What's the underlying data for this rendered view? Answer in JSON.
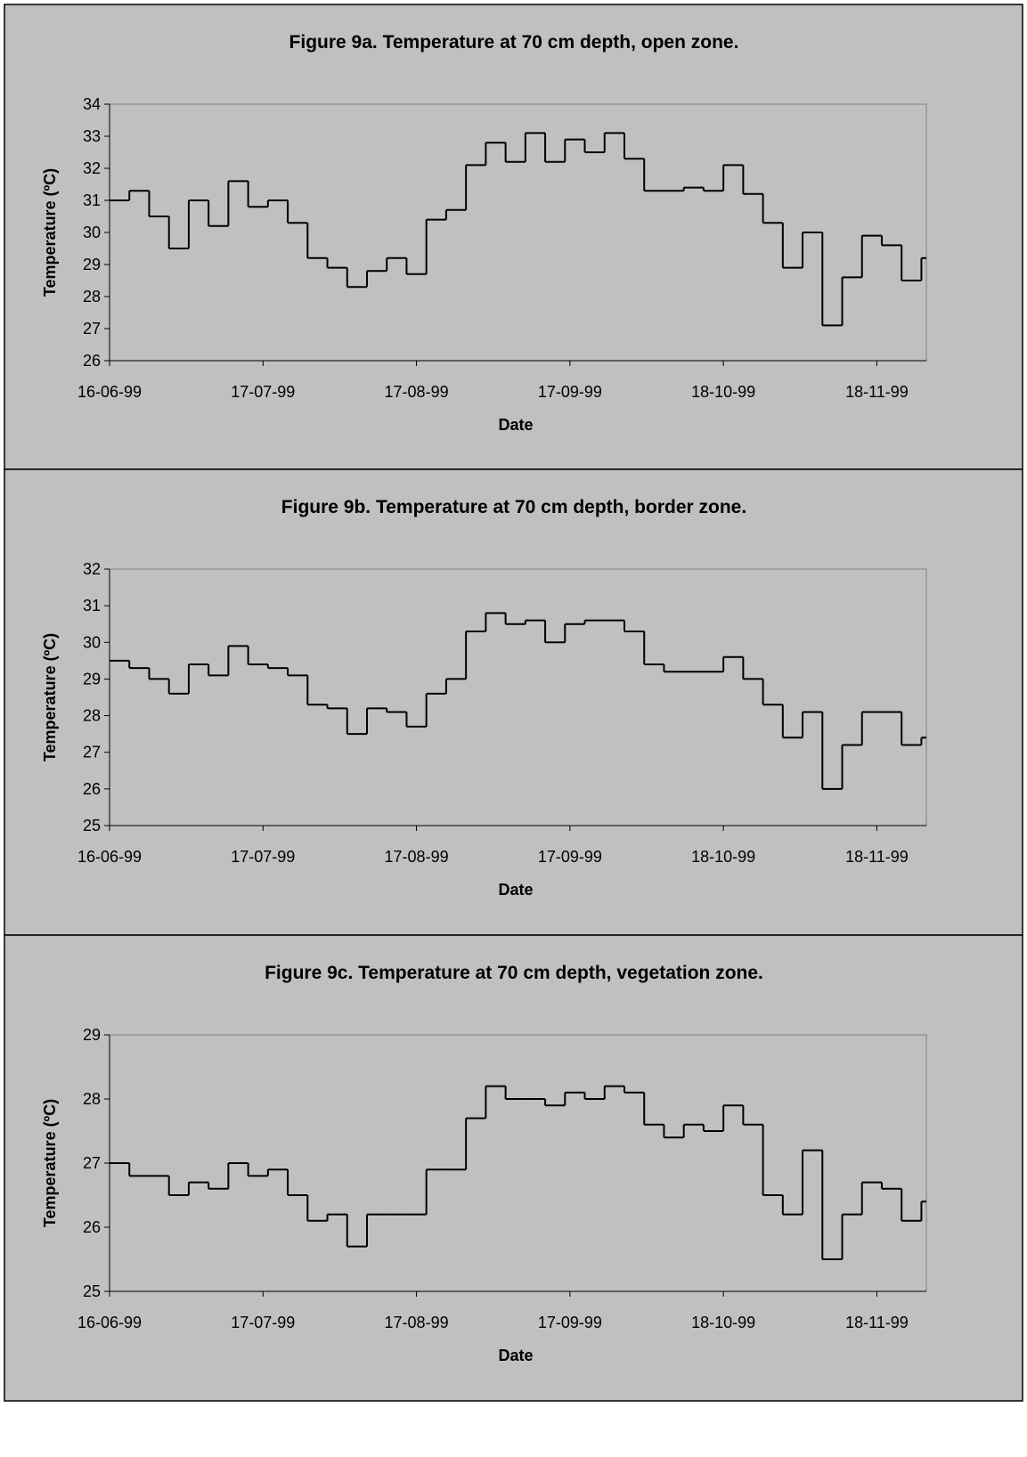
{
  "chart_data": [
    {
      "type": "line",
      "title": "Figure 9a. Temperature at 70 cm depth, open zone.",
      "x_label": "Date",
      "y_label": "Temperature (ºC)",
      "step": true,
      "x": [
        "16-06-99",
        "20-06-99",
        "24-06-99",
        "28-06-99",
        "02-07-99",
        "06-07-99",
        "10-07-99",
        "14-07-99",
        "18-07-99",
        "22-07-99",
        "26-07-99",
        "30-07-99",
        "03-08-99",
        "07-08-99",
        "11-08-99",
        "15-08-99",
        "19-08-99",
        "23-08-99",
        "27-08-99",
        "31-08-99",
        "04-09-99",
        "08-09-99",
        "12-09-99",
        "16-09-99",
        "20-09-99",
        "24-09-99",
        "28-09-99",
        "02-10-99",
        "06-10-99",
        "10-10-99",
        "14-10-99",
        "18-10-99",
        "22-10-99",
        "26-10-99",
        "30-10-99",
        "03-11-99",
        "07-11-99",
        "11-11-99",
        "15-11-99",
        "19-11-99",
        "23-11-99",
        "27-11-99"
      ],
      "series": [
        {
          "color": "#000000",
          "values": [
            31.0,
            31.3,
            30.5,
            29.5,
            31.0,
            30.2,
            31.6,
            30.8,
            31.0,
            30.3,
            29.2,
            28.9,
            28.3,
            28.8,
            29.2,
            28.7,
            30.4,
            30.7,
            32.1,
            32.8,
            32.2,
            33.1,
            32.2,
            32.9,
            32.5,
            33.1,
            32.3,
            31.3,
            31.3,
            31.4,
            31.3,
            32.1,
            31.2,
            30.3,
            28.9,
            30.0,
            27.1,
            28.6,
            29.9,
            29.6,
            28.5,
            29.2
          ]
        }
      ],
      "xlim": [
        "16-06-99",
        "28-11-99"
      ],
      "xticks": [
        "16-06-99",
        "17-07-99",
        "17-08-99",
        "17-09-99",
        "18-10-99",
        "18-11-99"
      ],
      "ylim": [
        26,
        34
      ],
      "yticks": [
        26,
        27,
        28,
        29,
        30,
        31,
        32,
        33,
        34
      ]
    },
    {
      "type": "line",
      "title": "Figure 9b. Temperature at 70 cm depth, border zone.",
      "x_label": "Date",
      "y_label": "Temperature (ºC)",
      "step": true,
      "x": [
        "16-06-99",
        "20-06-99",
        "24-06-99",
        "28-06-99",
        "02-07-99",
        "06-07-99",
        "10-07-99",
        "14-07-99",
        "18-07-99",
        "22-07-99",
        "26-07-99",
        "30-07-99",
        "03-08-99",
        "07-08-99",
        "11-08-99",
        "15-08-99",
        "19-08-99",
        "23-08-99",
        "27-08-99",
        "31-08-99",
        "04-09-99",
        "08-09-99",
        "12-09-99",
        "16-09-99",
        "20-09-99",
        "24-09-99",
        "28-09-99",
        "02-10-99",
        "06-10-99",
        "10-10-99",
        "14-10-99",
        "18-10-99",
        "22-10-99",
        "26-10-99",
        "30-10-99",
        "03-11-99",
        "07-11-99",
        "11-11-99",
        "15-11-99",
        "19-11-99",
        "23-11-99",
        "27-11-99"
      ],
      "series": [
        {
          "color": "#000000",
          "values": [
            29.5,
            29.3,
            29.0,
            28.6,
            29.4,
            29.1,
            29.9,
            29.4,
            29.3,
            29.1,
            28.3,
            28.2,
            27.5,
            28.2,
            28.1,
            27.7,
            28.6,
            29.0,
            30.3,
            30.8,
            30.5,
            30.6,
            30.0,
            30.5,
            30.6,
            30.6,
            30.3,
            29.4,
            29.2,
            29.2,
            29.2,
            29.6,
            29.0,
            28.3,
            27.4,
            28.1,
            26.0,
            27.2,
            28.1,
            28.1,
            27.2,
            27.4
          ]
        }
      ],
      "xlim": [
        "16-06-99",
        "28-11-99"
      ],
      "xticks": [
        "16-06-99",
        "17-07-99",
        "17-08-99",
        "17-09-99",
        "18-10-99",
        "18-11-99"
      ],
      "ylim": [
        25,
        32
      ],
      "yticks": [
        25,
        26,
        27,
        28,
        29,
        30,
        31,
        32
      ]
    },
    {
      "type": "line",
      "title": "Figure 9c. Temperature at 70 cm depth, vegetation zone.",
      "x_label": "Date",
      "y_label": "Temperature (ºC)",
      "step": true,
      "x": [
        "16-06-99",
        "20-06-99",
        "24-06-99",
        "28-06-99",
        "02-07-99",
        "06-07-99",
        "10-07-99",
        "14-07-99",
        "18-07-99",
        "22-07-99",
        "26-07-99",
        "30-07-99",
        "03-08-99",
        "07-08-99",
        "11-08-99",
        "15-08-99",
        "19-08-99",
        "23-08-99",
        "27-08-99",
        "31-08-99",
        "04-09-99",
        "08-09-99",
        "12-09-99",
        "16-09-99",
        "20-09-99",
        "24-09-99",
        "28-09-99",
        "02-10-99",
        "06-10-99",
        "10-10-99",
        "14-10-99",
        "18-10-99",
        "22-10-99",
        "26-10-99",
        "30-10-99",
        "03-11-99",
        "07-11-99",
        "11-11-99",
        "15-11-99",
        "19-11-99",
        "23-11-99",
        "27-11-99"
      ],
      "series": [
        {
          "color": "#000000",
          "values": [
            27.0,
            26.8,
            26.8,
            26.5,
            26.7,
            26.6,
            27.0,
            26.8,
            26.9,
            26.5,
            26.1,
            26.2,
            25.7,
            26.2,
            26.2,
            26.2,
            26.9,
            26.9,
            27.7,
            28.2,
            28.0,
            28.0,
            27.9,
            28.1,
            28.0,
            28.2,
            28.1,
            27.6,
            27.4,
            27.6,
            27.5,
            27.9,
            27.6,
            26.5,
            26.2,
            27.2,
            25.5,
            26.2,
            26.7,
            26.6,
            26.1,
            26.4
          ]
        }
      ],
      "xlim": [
        "16-06-99",
        "28-11-99"
      ],
      "xticks": [
        "16-06-99",
        "17-07-99",
        "17-08-99",
        "17-09-99",
        "18-10-99",
        "18-11-99"
      ],
      "ylim": [
        25,
        29
      ],
      "yticks": [
        25,
        26,
        27,
        28,
        29
      ]
    }
  ]
}
